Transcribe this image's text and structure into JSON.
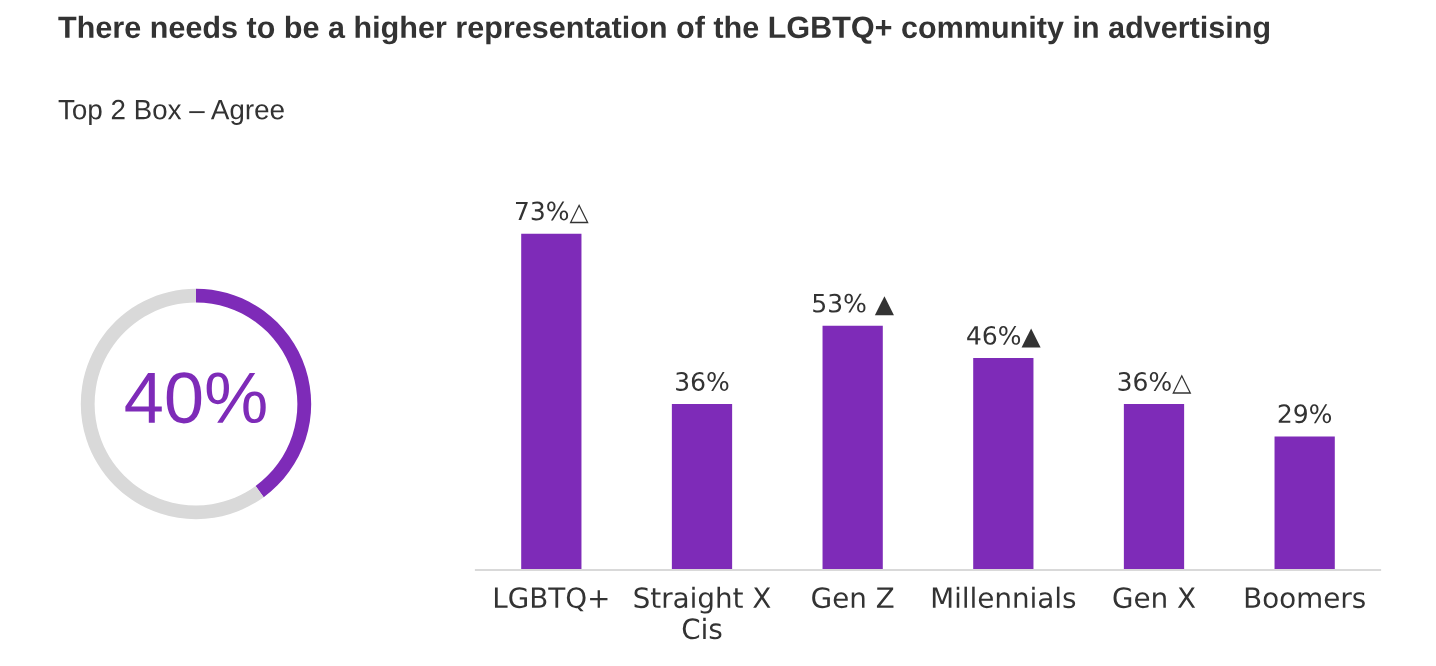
{
  "chart_data": [
    {
      "type": "donut",
      "title": "There needs to be a higher representation of the LGBTQ+ community in advertising",
      "subtitle": "Top 2 Box – Agree",
      "categories": [
        null,
        null
      ],
      "values": [
        40,
        60
      ],
      "colors": [
        "#7e2bb8",
        "#d9d9d9"
      ],
      "value_labels": [
        "40%",
        null
      ]
    },
    {
      "type": "bar",
      "categories": [
        "LGBTQ+",
        "Straight X\nCis",
        "Gen Z",
        "Millennials",
        "Gen X",
        "Boomers"
      ],
      "values": [
        73,
        36,
        53,
        46,
        36,
        29
      ],
      "color": "#7e2bb8",
      "value_labels": [
        "73%△",
        "36%",
        "53% ▲",
        "46%▲",
        "36%△",
        "29%"
      ]
    }
  ]
}
